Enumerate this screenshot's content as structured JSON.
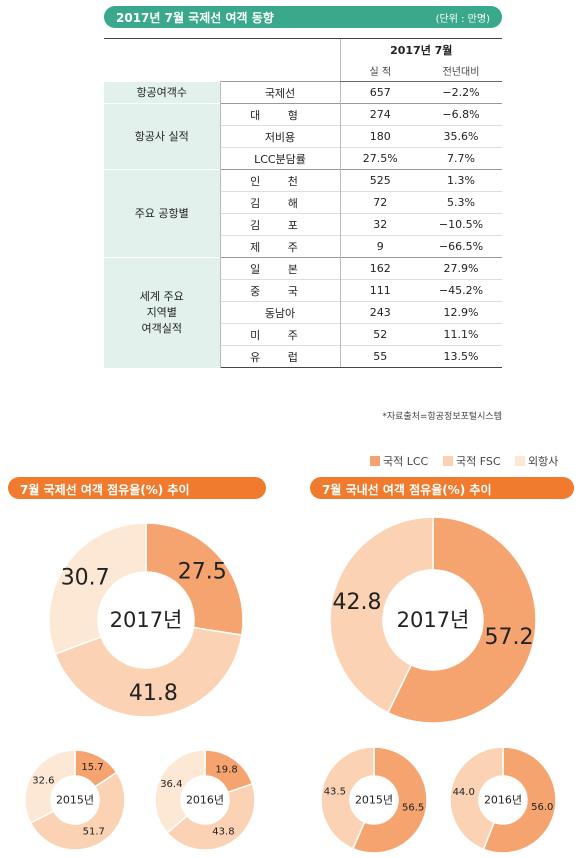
{
  "header": {
    "title": "2017년 7월 국제선 여객 동향",
    "unit": "(단위 : 만명)"
  },
  "table": {
    "period": "2017년 7월",
    "col_actual": "실 적",
    "col_yoy": "전년대비",
    "rows": [
      {
        "group": "항공여객수",
        "item": "국제선",
        "actual": "657",
        "yoy": "−2.2%"
      },
      {
        "group": "항공사 실적",
        "item": "대 형",
        "actual": "274",
        "yoy": "−6.8%"
      },
      {
        "item": "저비용",
        "actual": "180",
        "yoy": "35.6%"
      },
      {
        "item": "LCC분담률",
        "actual": "27.5%",
        "yoy": "7.7%"
      },
      {
        "group": "주요 공항별",
        "item": "인 천",
        "actual": "525",
        "yoy": "1.3%"
      },
      {
        "item": "김 해",
        "actual": "72",
        "yoy": "5.3%"
      },
      {
        "item": "김 포",
        "actual": "32",
        "yoy": "−10.5%"
      },
      {
        "item": "제 주",
        "actual": "9",
        "yoy": "−66.5%"
      },
      {
        "group": "세계 주요 지역별 여객실적",
        "item": "일 본",
        "actual": "162",
        "yoy": "27.9%"
      },
      {
        "item": "중 국",
        "actual": "111",
        "yoy": "−45.2%"
      },
      {
        "item": "동남아",
        "actual": "243",
        "yoy": "12.9%"
      },
      {
        "item": "미 주",
        "actual": "52",
        "yoy": "11.1%"
      },
      {
        "item": "유 럽",
        "actual": "55",
        "yoy": "13.5%"
      }
    ],
    "group_lines": {
      "g1": "세계 주요",
      "g2": "지역별",
      "g3": "여객실적"
    },
    "source": "*자료출처=항공정보포털시스템"
  },
  "legend": [
    {
      "label": "국적 LCC",
      "color": "#f5a470"
    },
    {
      "label": "국적 FSC",
      "color": "#fbd3b4"
    },
    {
      "label": "외항사",
      "color": "#fde8d6"
    }
  ],
  "panels": {
    "international_title": "7월 국제선 여객 점유율(%) 추이",
    "domestic_title": "7월 국내선 여객 점유율(%) 추이"
  },
  "colors": {
    "lcc": "#f5a470",
    "fsc": "#fbd3b4",
    "foreign": "#fde8d6",
    "green": "#3aa88a",
    "orange": "#f07b2e"
  },
  "chart_data": [
    {
      "type": "pie",
      "title": "7월 국제선 여객 점유율(%) 추이",
      "center_label": "2017년",
      "categories": [
        "국적 LCC",
        "국적 FSC",
        "외항사"
      ],
      "values": [
        27.5,
        41.8,
        30.7
      ]
    },
    {
      "type": "pie",
      "center_label": "2015년",
      "categories": [
        "국적 LCC",
        "국적 FSC",
        "외항사"
      ],
      "values": [
        15.7,
        51.7,
        32.6
      ]
    },
    {
      "type": "pie",
      "center_label": "2016년",
      "categories": [
        "국적 LCC",
        "국적 FSC",
        "외항사"
      ],
      "values": [
        19.8,
        43.8,
        36.4
      ]
    },
    {
      "type": "pie",
      "title": "7월 국내선 여객 점유율(%) 추이",
      "center_label": "2017년",
      "categories": [
        "국적 LCC",
        "국적 FSC"
      ],
      "values": [
        57.2,
        42.8
      ]
    },
    {
      "type": "pie",
      "center_label": "2015년",
      "categories": [
        "국적 LCC",
        "국적 FSC"
      ],
      "values": [
        56.5,
        43.5
      ]
    },
    {
      "type": "pie",
      "center_label": "2016년",
      "categories": [
        "국적 LCC",
        "국적 FSC"
      ],
      "values": [
        56.0,
        44.0
      ]
    }
  ]
}
